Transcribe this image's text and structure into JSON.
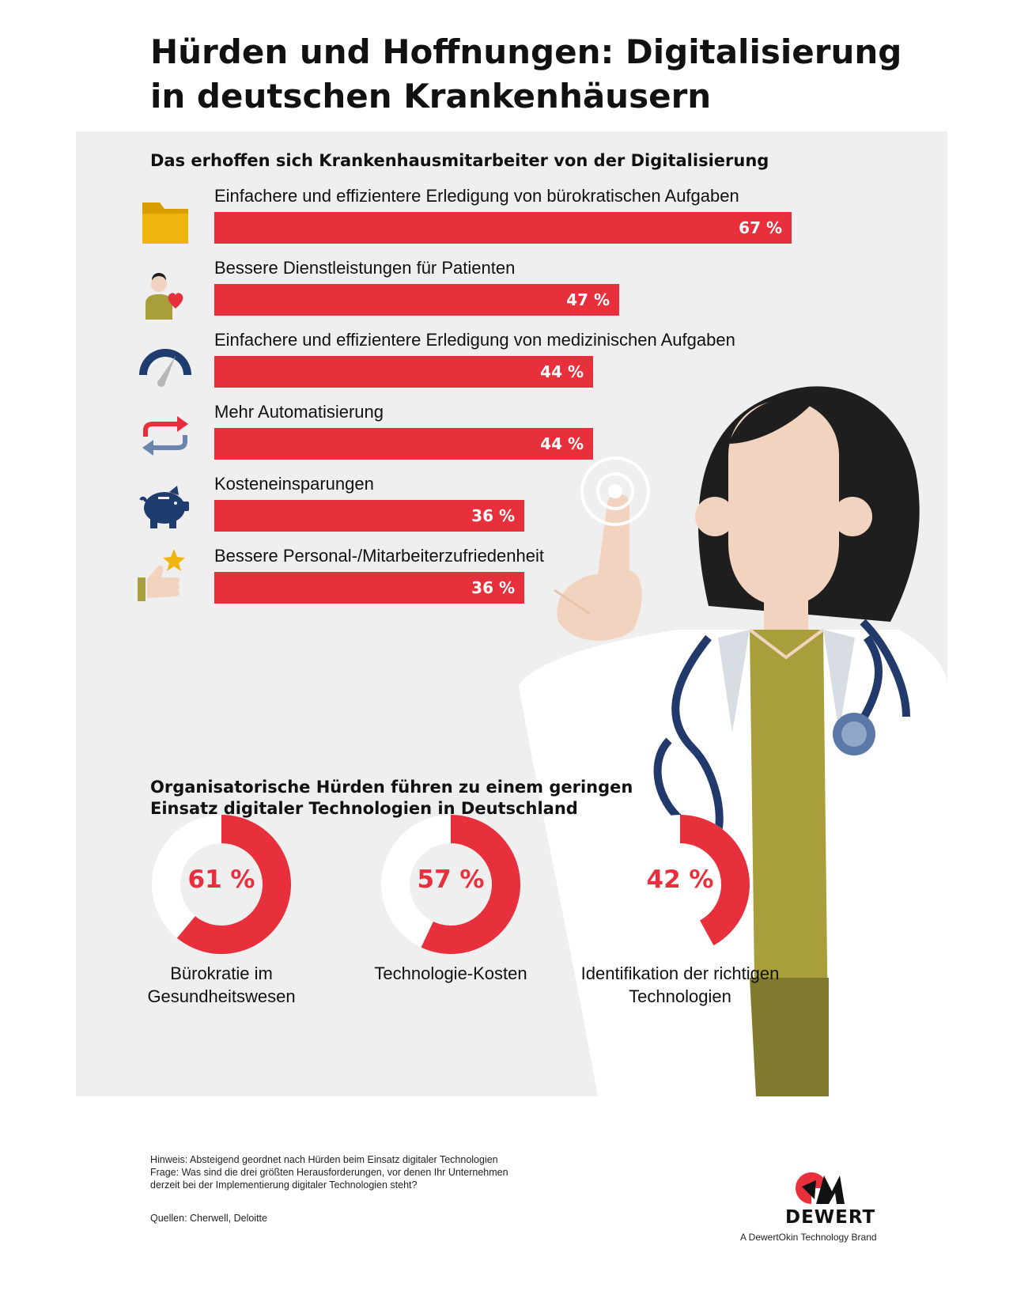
{
  "title": "Hürden und Hoffnungen: Digitalisierung in deutschen Krankenhäusern",
  "colors": {
    "accent": "#e8303d",
    "panel": "#efefef",
    "text": "#111111"
  },
  "hopes": {
    "heading": "Das erhoffen sich Krankenhausmitarbeiter von der Digitalisierung",
    "items": [
      {
        "label": "Einfachere und effizientere Erledigung von bürokratischen Aufgaben",
        "value_label": "67 %",
        "icon": "folder-icon"
      },
      {
        "label": "Bessere Dienstleistungen für Patienten",
        "value_label": "47 %",
        "icon": "patient-heart-icon"
      },
      {
        "label": "Einfachere und effizientere Erledigung von medizinischen Aufgaben",
        "value_label": "44 %",
        "icon": "speedometer-icon"
      },
      {
        "label": "Mehr Automatisierung",
        "value_label": "44 %",
        "icon": "cycle-arrows-icon"
      },
      {
        "label": "Kosteneinsparungen",
        "value_label": "36 %",
        "icon": "piggy-bank-icon"
      },
      {
        "label": "Bessere Personal-/Mitarbeiterzufriedenheit",
        "value_label": "36 %",
        "icon": "thumbs-up-star-icon"
      }
    ]
  },
  "hurdles": {
    "heading": "Organisatorische Hürden führen zu einem geringen Einsatz digitaler Technologien in Deutschland",
    "items": [
      {
        "value_label": "61 %",
        "caption": "Bürokratie im Gesundheitswesen"
      },
      {
        "value_label": "57 %",
        "caption": "Technologie-Kosten"
      },
      {
        "value_label": "42 %",
        "caption": "Identifikation der richtigen Technologien"
      }
    ]
  },
  "chart_data": [
    {
      "type": "bar",
      "orientation": "horizontal",
      "title": "Das erhoffen sich Krankenhausmitarbeiter von der Digitalisierung",
      "categories": [
        "Einfachere und effizientere Erledigung von bürokratischen Aufgaben",
        "Bessere Dienstleistungen für Patienten",
        "Einfachere und effizientere Erledigung von medizinischen Aufgaben",
        "Mehr Automatisierung",
        "Kosteneinsparungen",
        "Bessere Personal-/Mitarbeiterzufriedenheit"
      ],
      "values": [
        67,
        47,
        44,
        44,
        36,
        36
      ],
      "unit": "%",
      "xlim": [
        0,
        100
      ],
      "grid": false,
      "color": "#e8303d"
    },
    {
      "type": "pie",
      "variant": "donut",
      "title": "Organisatorische Hürden führen zu einem geringen Einsatz digitaler Technologien in Deutschland",
      "categories": [
        "Bürokratie im Gesundheitswesen",
        "Technologie-Kosten",
        "Identifikation der richtigen Technologien"
      ],
      "values": [
        61,
        57,
        42
      ],
      "unit": "%",
      "color": "#e8303d",
      "track_color": "#ffffff"
    }
  ],
  "footnotes": {
    "note": "Hinweis: Absteigend geordnet nach Hürden beim Einsatz digitaler Technologien",
    "question": "Frage: Was sind die drei größten Herausforderungen, vor denen Ihr Unternehmen derzeit bei der Implementierung digitaler Technologien steht?",
    "sources": "Quellen: Cherwell, Deloitte"
  },
  "brand": {
    "name": "DEWERT",
    "tagline": "A DewertOkin Technology Brand"
  }
}
